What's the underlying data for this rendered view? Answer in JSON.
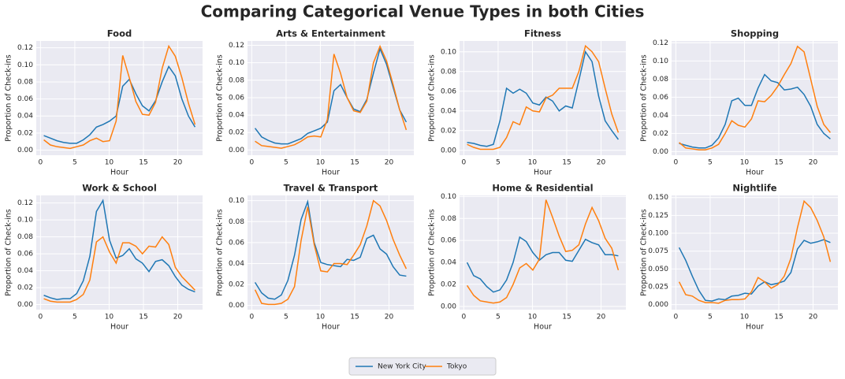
{
  "title": "Comparing Categorical Venue Types in both Cities",
  "legend": {
    "loc": "lower center",
    "ncol": 2
  },
  "chart_data": [
    {
      "type": "line",
      "title": "Food",
      "x_label": "Hour",
      "y_label": "Proportion of Check-ins",
      "x": [
        0.48,
        1.44,
        2.4,
        3.35,
        4.31,
        5.27,
        6.23,
        7.19,
        8.15,
        9.1,
        10.06,
        11.02,
        11.98,
        12.94,
        13.9,
        14.85,
        15.81,
        16.77,
        17.73,
        18.69,
        19.65,
        20.6,
        21.56,
        22.52
      ],
      "xlim": [
        -0.62,
        23.62
      ],
      "xticks": [
        0,
        5,
        10,
        15,
        20
      ],
      "ylim": [
        -0.006,
        0.128
      ],
      "yticks": [
        {
          "value": 0,
          "label": "0.00"
        },
        {
          "value": 0.02,
          "label": "0.02"
        },
        {
          "value": 0.04,
          "label": "0.04"
        },
        {
          "value": 0.06,
          "label": "0.06"
        },
        {
          "value": 0.08,
          "label": "0.08"
        },
        {
          "value": 0.1,
          "label": "0.10"
        },
        {
          "value": 0.12,
          "label": "0.12"
        }
      ],
      "grid": true,
      "series": [
        {
          "name": "New York City",
          "color": "#1f77b4",
          "values": [
            0.017,
            0.014,
            0.011,
            0.009,
            0.008,
            0.008,
            0.012,
            0.018,
            0.027,
            0.03,
            0.034,
            0.04,
            0.075,
            0.083,
            0.066,
            0.052,
            0.046,
            0.058,
            0.08,
            0.098,
            0.087,
            0.06,
            0.04,
            0.027
          ]
        },
        {
          "name": "Tokyo",
          "color": "#ff7f0e",
          "values": [
            0.012,
            0.006,
            0.004,
            0.003,
            0.002,
            0.004,
            0.006,
            0.011,
            0.014,
            0.01,
            0.011,
            0.034,
            0.111,
            0.085,
            0.057,
            0.042,
            0.041,
            0.056,
            0.096,
            0.122,
            0.11,
            0.085,
            0.055,
            0.03
          ]
        }
      ]
    },
    {
      "type": "line",
      "title": "Arts & Entertainment",
      "x_label": "Hour",
      "y_label": "Proportion of Check-ins",
      "x": [
        0.48,
        1.44,
        2.4,
        3.35,
        4.31,
        5.27,
        6.23,
        7.19,
        8.15,
        9.1,
        10.06,
        11.02,
        11.98,
        12.94,
        13.9,
        14.85,
        15.81,
        16.77,
        17.73,
        18.69,
        19.65,
        20.6,
        21.56,
        22.52
      ],
      "xlim": [
        -0.62,
        23.62
      ],
      "xticks": [
        0,
        5,
        10,
        15,
        20
      ],
      "ylim": [
        -0.006,
        0.125
      ],
      "yticks": [
        {
          "value": 0,
          "label": "0.00"
        },
        {
          "value": 0.02,
          "label": "0.02"
        },
        {
          "value": 0.04,
          "label": "0.04"
        },
        {
          "value": 0.06,
          "label": "0.06"
        },
        {
          "value": 0.08,
          "label": "0.08"
        },
        {
          "value": 0.1,
          "label": "0.10"
        },
        {
          "value": 0.12,
          "label": "0.12"
        }
      ],
      "grid": true,
      "series": [
        {
          "name": "New York City",
          "color": "#1f77b4",
          "values": [
            0.025,
            0.015,
            0.011,
            0.008,
            0.007,
            0.007,
            0.01,
            0.013,
            0.019,
            0.022,
            0.025,
            0.032,
            0.068,
            0.075,
            0.06,
            0.047,
            0.044,
            0.058,
            0.088,
            0.116,
            0.098,
            0.072,
            0.046,
            0.032
          ]
        },
        {
          "name": "Tokyo",
          "color": "#ff7f0e",
          "values": [
            0.01,
            0.005,
            0.004,
            0.003,
            0.002,
            0.004,
            0.006,
            0.01,
            0.015,
            0.016,
            0.015,
            0.035,
            0.11,
            0.088,
            0.06,
            0.045,
            0.043,
            0.056,
            0.1,
            0.119,
            0.102,
            0.075,
            0.046,
            0.023
          ]
        }
      ]
    },
    {
      "type": "line",
      "title": "Fitness",
      "x_label": "Hour",
      "y_label": "Proportion of Check-ins",
      "x": [
        0.48,
        1.44,
        2.4,
        3.35,
        4.31,
        5.27,
        6.23,
        7.19,
        8.15,
        9.1,
        10.06,
        11.02,
        11.98,
        12.94,
        13.9,
        14.85,
        15.81,
        16.77,
        17.73,
        18.69,
        19.65,
        20.6,
        21.56,
        22.52
      ],
      "xlim": [
        -0.62,
        23.62
      ],
      "xticks": [
        0,
        5,
        10,
        15,
        20
      ],
      "ylim": [
        -0.005,
        0.111
      ],
      "yticks": [
        {
          "value": 0,
          "label": "0.00"
        },
        {
          "value": 0.02,
          "label": "0.02"
        },
        {
          "value": 0.04,
          "label": "0.04"
        },
        {
          "value": 0.06,
          "label": "0.06"
        },
        {
          "value": 0.08,
          "label": "0.08"
        },
        {
          "value": 0.1,
          "label": "0.10"
        }
      ],
      "grid": true,
      "series": [
        {
          "name": "New York City",
          "color": "#1f77b4",
          "values": [
            0.008,
            0.007,
            0.005,
            0.004,
            0.006,
            0.03,
            0.063,
            0.058,
            0.062,
            0.058,
            0.048,
            0.046,
            0.054,
            0.05,
            0.04,
            0.045,
            0.043,
            0.071,
            0.1,
            0.09,
            0.055,
            0.03,
            0.02,
            0.011
          ]
        },
        {
          "name": "Tokyo",
          "color": "#ff7f0e",
          "values": [
            0.006,
            0.003,
            0.001,
            0.001,
            0.001,
            0.003,
            0.013,
            0.029,
            0.026,
            0.044,
            0.04,
            0.039,
            0.053,
            0.056,
            0.063,
            0.063,
            0.063,
            0.08,
            0.106,
            0.1,
            0.09,
            0.063,
            0.037,
            0.018
          ]
        }
      ]
    },
    {
      "type": "line",
      "title": "Shopping",
      "x_label": "Hour",
      "y_label": "Proportion of Check-ins",
      "x": [
        0.48,
        1.44,
        2.4,
        3.35,
        4.31,
        5.27,
        6.23,
        7.19,
        8.15,
        9.1,
        10.06,
        11.02,
        11.98,
        12.94,
        13.9,
        14.85,
        15.81,
        16.77,
        17.73,
        18.69,
        19.65,
        20.6,
        21.56,
        22.52
      ],
      "xlim": [
        -0.62,
        23.62
      ],
      "xticks": [
        0,
        5,
        10,
        15,
        20
      ],
      "ylim": [
        -0.004,
        0.122
      ],
      "yticks": [
        {
          "value": 0,
          "label": "0.00"
        },
        {
          "value": 0.02,
          "label": "0.02"
        },
        {
          "value": 0.04,
          "label": "0.04"
        },
        {
          "value": 0.06,
          "label": "0.06"
        },
        {
          "value": 0.08,
          "label": "0.08"
        },
        {
          "value": 0.1,
          "label": "0.10"
        },
        {
          "value": 0.12,
          "label": "0.12"
        }
      ],
      "grid": true,
      "series": [
        {
          "name": "New York City",
          "color": "#1f77b4",
          "values": [
            0.009,
            0.007,
            0.005,
            0.004,
            0.004,
            0.007,
            0.015,
            0.03,
            0.056,
            0.059,
            0.051,
            0.051,
            0.07,
            0.085,
            0.078,
            0.076,
            0.068,
            0.069,
            0.071,
            0.063,
            0.05,
            0.03,
            0.02,
            0.014
          ]
        },
        {
          "name": "Tokyo",
          "color": "#ff7f0e",
          "values": [
            0.01,
            0.004,
            0.003,
            0.002,
            0.002,
            0.004,
            0.008,
            0.02,
            0.034,
            0.029,
            0.027,
            0.036,
            0.056,
            0.055,
            0.062,
            0.072,
            0.085,
            0.097,
            0.116,
            0.11,
            0.08,
            0.05,
            0.03,
            0.021
          ]
        }
      ]
    },
    {
      "type": "line",
      "title": "Work & School",
      "x_label": "Hour",
      "y_label": "Proportion of Check-ins",
      "x": [
        0.48,
        1.44,
        2.4,
        3.35,
        4.31,
        5.27,
        6.23,
        7.19,
        8.15,
        9.1,
        10.06,
        11.02,
        11.98,
        12.94,
        13.9,
        14.85,
        15.81,
        16.77,
        17.73,
        18.69,
        19.65,
        20.6,
        21.56,
        22.52
      ],
      "xlim": [
        -0.62,
        23.62
      ],
      "xticks": [
        0,
        5,
        10,
        15,
        20
      ],
      "ylim": [
        -0.006,
        0.129
      ],
      "yticks": [
        {
          "value": 0,
          "label": "0.00"
        },
        {
          "value": 0.02,
          "label": "0.02"
        },
        {
          "value": 0.04,
          "label": "0.04"
        },
        {
          "value": 0.06,
          "label": "0.06"
        },
        {
          "value": 0.08,
          "label": "0.08"
        },
        {
          "value": 0.1,
          "label": "0.10"
        },
        {
          "value": 0.12,
          "label": "0.12"
        }
      ],
      "grid": true,
      "series": [
        {
          "name": "New York City",
          "color": "#1f77b4",
          "values": [
            0.011,
            0.008,
            0.006,
            0.007,
            0.007,
            0.013,
            0.028,
            0.057,
            0.11,
            0.123,
            0.076,
            0.055,
            0.058,
            0.066,
            0.054,
            0.049,
            0.039,
            0.051,
            0.053,
            0.046,
            0.033,
            0.023,
            0.018,
            0.015
          ]
        },
        {
          "name": "Tokyo",
          "color": "#ff7f0e",
          "values": [
            0.007,
            0.004,
            0.003,
            0.003,
            0.003,
            0.006,
            0.012,
            0.029,
            0.074,
            0.08,
            0.062,
            0.049,
            0.073,
            0.073,
            0.069,
            0.06,
            0.069,
            0.068,
            0.08,
            0.071,
            0.044,
            0.033,
            0.025,
            0.017
          ]
        }
      ]
    },
    {
      "type": "line",
      "title": "Travel & Transport",
      "x_label": "Hour",
      "y_label": "Proportion of Check-ins",
      "x": [
        0.48,
        1.44,
        2.4,
        3.35,
        4.31,
        5.27,
        6.23,
        7.19,
        8.15,
        9.1,
        10.06,
        11.02,
        11.98,
        12.94,
        13.9,
        14.85,
        15.81,
        16.77,
        17.73,
        18.69,
        19.65,
        20.6,
        21.56,
        22.52
      ],
      "xlim": [
        -0.62,
        23.62
      ],
      "xticks": [
        0,
        5,
        10,
        15,
        20
      ],
      "ylim": [
        -0.004,
        0.105
      ],
      "yticks": [
        {
          "value": 0,
          "label": "0.00"
        },
        {
          "value": 0.02,
          "label": "0.02"
        },
        {
          "value": 0.04,
          "label": "0.04"
        },
        {
          "value": 0.06,
          "label": "0.06"
        },
        {
          "value": 0.08,
          "label": "0.08"
        },
        {
          "value": 0.1,
          "label": "0.10"
        }
      ],
      "grid": true,
      "series": [
        {
          "name": "New York City",
          "color": "#1f77b4",
          "values": [
            0.022,
            0.012,
            0.007,
            0.006,
            0.01,
            0.024,
            0.048,
            0.082,
            0.099,
            0.06,
            0.041,
            0.039,
            0.038,
            0.037,
            0.044,
            0.043,
            0.046,
            0.064,
            0.067,
            0.054,
            0.049,
            0.037,
            0.029,
            0.028
          ]
        },
        {
          "name": "Tokyo",
          "color": "#ff7f0e",
          "values": [
            0.015,
            0.002,
            0.001,
            0.001,
            0.002,
            0.006,
            0.018,
            0.062,
            0.094,
            0.058,
            0.033,
            0.032,
            0.04,
            0.04,
            0.039,
            0.048,
            0.058,
            0.076,
            0.1,
            0.095,
            0.081,
            0.063,
            0.048,
            0.035
          ]
        }
      ]
    },
    {
      "type": "line",
      "title": "Home & Residential",
      "x_label": "Hour",
      "y_label": "Proportion of Check-ins",
      "x": [
        0.48,
        1.44,
        2.4,
        3.35,
        4.31,
        5.27,
        6.23,
        7.19,
        8.15,
        9.1,
        10.06,
        11.02,
        11.98,
        12.94,
        13.9,
        14.85,
        15.81,
        16.77,
        17.73,
        18.69,
        19.65,
        20.6,
        21.56,
        22.52
      ],
      "xlim": [
        -0.62,
        23.62
      ],
      "xticks": [
        0,
        5,
        10,
        15,
        20
      ],
      "ylim": [
        -0.003,
        0.101
      ],
      "yticks": [
        {
          "value": 0,
          "label": "0.00"
        },
        {
          "value": 0.02,
          "label": "0.02"
        },
        {
          "value": 0.04,
          "label": "0.04"
        },
        {
          "value": 0.06,
          "label": "0.06"
        },
        {
          "value": 0.08,
          "label": "0.08"
        },
        {
          "value": 0.1,
          "label": "0.10"
        }
      ],
      "grid": true,
      "series": [
        {
          "name": "New York City",
          "color": "#1f77b4",
          "values": [
            0.04,
            0.028,
            0.025,
            0.018,
            0.013,
            0.015,
            0.024,
            0.04,
            0.063,
            0.059,
            0.049,
            0.042,
            0.047,
            0.049,
            0.049,
            0.042,
            0.041,
            0.051,
            0.061,
            0.058,
            0.056,
            0.047,
            0.047,
            0.046
          ]
        },
        {
          "name": "Tokyo",
          "color": "#ff7f0e",
          "values": [
            0.019,
            0.01,
            0.005,
            0.004,
            0.003,
            0.004,
            0.008,
            0.02,
            0.035,
            0.039,
            0.033,
            0.043,
            0.097,
            0.081,
            0.064,
            0.05,
            0.051,
            0.056,
            0.075,
            0.09,
            0.078,
            0.062,
            0.053,
            0.033
          ]
        }
      ]
    },
    {
      "type": "line",
      "title": "Nightlife",
      "x_label": "Hour",
      "y_label": "Proportion of Check-ins",
      "x": [
        0.48,
        1.44,
        2.4,
        3.35,
        4.31,
        5.27,
        6.23,
        7.19,
        8.15,
        9.1,
        10.06,
        11.02,
        11.98,
        12.94,
        13.9,
        14.85,
        15.81,
        16.77,
        17.73,
        18.69,
        19.65,
        20.6,
        21.56,
        22.52
      ],
      "xlim": [
        -0.62,
        23.62
      ],
      "xticks": [
        0,
        5,
        10,
        15,
        20
      ],
      "ylim": [
        -0.007,
        0.153
      ],
      "yticks": [
        {
          "value": 0,
          "label": "0.000"
        },
        {
          "value": 0.025,
          "label": "0.025"
        },
        {
          "value": 0.05,
          "label": "0.050"
        },
        {
          "value": 0.075,
          "label": "0.075"
        },
        {
          "value": 0.1,
          "label": "0.100"
        },
        {
          "value": 0.125,
          "label": "0.125"
        },
        {
          "value": 0.15,
          "label": "0.150"
        }
      ],
      "grid": true,
      "series": [
        {
          "name": "New York City",
          "color": "#1f77b4",
          "values": [
            0.08,
            0.062,
            0.04,
            0.02,
            0.006,
            0.005,
            0.008,
            0.007,
            0.012,
            0.013,
            0.016,
            0.015,
            0.026,
            0.032,
            0.028,
            0.03,
            0.033,
            0.045,
            0.078,
            0.09,
            0.086,
            0.088,
            0.091,
            0.087
          ]
        },
        {
          "name": "Tokyo",
          "color": "#ff7f0e",
          "values": [
            0.032,
            0.014,
            0.012,
            0.006,
            0.003,
            0.003,
            0.002,
            0.006,
            0.007,
            0.007,
            0.008,
            0.018,
            0.038,
            0.032,
            0.023,
            0.028,
            0.04,
            0.065,
            0.108,
            0.145,
            0.136,
            0.118,
            0.095,
            0.06
          ]
        }
      ]
    }
  ]
}
